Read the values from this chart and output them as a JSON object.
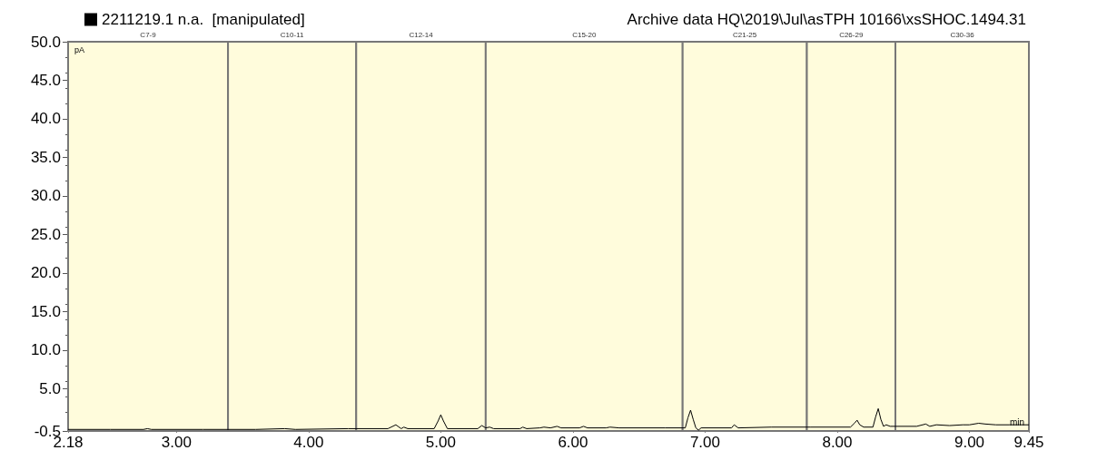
{
  "chart_data": {
    "type": "line",
    "title": "Archive data HQ\\2019\\Jul\\asTPH 10166\\xsSHOC.1494.31",
    "xlabel": "min",
    "ylabel": "pA",
    "series": [
      {
        "name": "2211219.1 n.a.  [manipulated]",
        "color": "#000000",
        "x": [
          2.18,
          2.5,
          2.75,
          2.78,
          2.81,
          3.2,
          3.6,
          3.82,
          3.9,
          4.3,
          4.6,
          4.66,
          4.7,
          4.72,
          4.75,
          4.95,
          4.98,
          5.0,
          5.02,
          5.05,
          5.28,
          5.31,
          5.34,
          5.37,
          5.4,
          5.6,
          5.62,
          5.65,
          5.75,
          5.78,
          5.83,
          5.88,
          5.91,
          6.05,
          6.08,
          6.11,
          6.25,
          6.28,
          6.35,
          6.7,
          6.85,
          6.87,
          6.89,
          6.91,
          6.93,
          6.95,
          6.97,
          7.2,
          7.22,
          7.25,
          7.5,
          7.8,
          8.1,
          8.13,
          8.15,
          8.17,
          8.2,
          8.27,
          8.29,
          8.31,
          8.33,
          8.35,
          8.37,
          8.4,
          8.6,
          8.67,
          8.7,
          8.75,
          8.85,
          8.95,
          9.0,
          9.07,
          9.12,
          9.2,
          9.3,
          9.38,
          9.45
        ],
        "values": [
          -0.3,
          -0.3,
          -0.3,
          -0.2,
          -0.3,
          -0.3,
          -0.3,
          -0.2,
          -0.3,
          -0.2,
          -0.2,
          0.3,
          -0.2,
          0.0,
          -0.2,
          -0.2,
          0.8,
          1.6,
          0.8,
          -0.2,
          -0.2,
          0.2,
          -0.1,
          0.0,
          -0.2,
          -0.2,
          0.0,
          -0.2,
          -0.1,
          0.0,
          -0.1,
          0.1,
          -0.1,
          -0.1,
          0.1,
          -0.1,
          -0.1,
          0.0,
          -0.1,
          -0.1,
          -0.1,
          1.2,
          2.2,
          1.0,
          -0.1,
          -0.4,
          -0.1,
          -0.1,
          0.3,
          -0.1,
          0.0,
          0.0,
          0.0,
          0.5,
          0.9,
          0.3,
          0.0,
          0.0,
          1.3,
          2.4,
          1.0,
          0.1,
          0.3,
          0.1,
          0.1,
          0.4,
          0.1,
          0.3,
          0.2,
          0.3,
          0.3,
          0.5,
          0.4,
          0.3,
          0.3,
          0.3,
          0.3
        ]
      }
    ],
    "xlim": [
      2.18,
      9.45
    ],
    "xticks": [
      {
        "value": 2.18,
        "label": "2.18"
      },
      {
        "value": 3,
        "label": "3.00"
      },
      {
        "value": 4,
        "label": "4.00"
      },
      {
        "value": 5,
        "label": "5.00"
      },
      {
        "value": 6,
        "label": "6.00"
      },
      {
        "value": 7,
        "label": "7.00"
      },
      {
        "value": 8,
        "label": "8.00"
      },
      {
        "value": 9,
        "label": "9.00"
      },
      {
        "value": 9.45,
        "label": "9.45"
      }
    ],
    "ylim": [
      -0.5,
      50
    ],
    "yticks": [
      -0.5,
      {
        "value": 5,
        "label": "5.0"
      },
      {
        "value": 10,
        "label": "10.0"
      },
      {
        "value": 15,
        "label": "15.0"
      },
      {
        "value": 20,
        "label": "20.0"
      },
      {
        "value": 25,
        "label": "25.0"
      },
      {
        "value": 30,
        "label": "30.0"
      },
      {
        "value": 35,
        "label": "35.0"
      },
      {
        "value": 40,
        "label": "40.0"
      },
      {
        "value": 45,
        "label": "45.0"
      },
      {
        "value": 50,
        "label": "50.0"
      }
    ],
    "bands": [
      {
        "axis": "x",
        "from": 2.18,
        "to": 3.39,
        "label": "C7-9",
        "color": "#fffcdc"
      },
      {
        "axis": "x",
        "from": 3.39,
        "to": 4.36,
        "label": "C10-11",
        "color": "#fffcdc"
      },
      {
        "axis": "x",
        "from": 4.36,
        "to": 5.34,
        "label": "C12-14",
        "color": "#fffcdc"
      },
      {
        "axis": "x",
        "from": 5.34,
        "to": 6.83,
        "label": "C15-20",
        "color": "#fffcdc"
      },
      {
        "axis": "x",
        "from": 6.83,
        "to": 7.77,
        "label": "C21-25",
        "color": "#fffcdc"
      },
      {
        "axis": "x",
        "from": 7.77,
        "to": 8.44,
        "label": "C26-29",
        "color": "#fffcdc"
      },
      {
        "axis": "x",
        "from": 8.44,
        "to": 9.45,
        "label": "C30-36",
        "color": "#fffcdc"
      }
    ],
    "legend": "top left",
    "marker": "none",
    "line_style": "solid"
  }
}
